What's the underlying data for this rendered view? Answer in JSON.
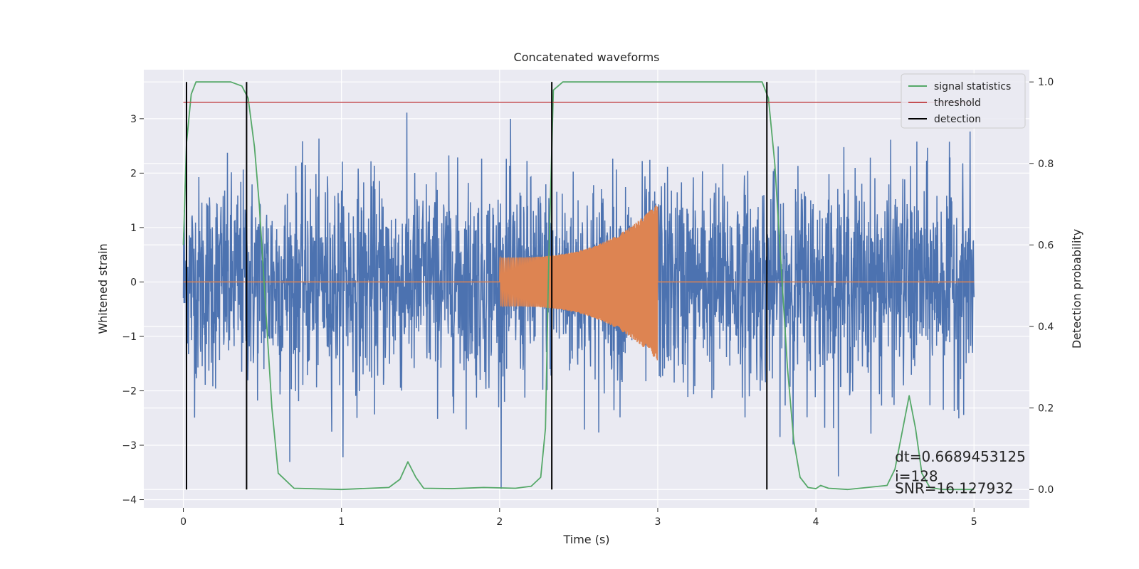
{
  "chart_data": {
    "type": "line",
    "title": "Concatenated waveforms",
    "xlabel": "Time (s)",
    "ylabel": "Whitened strain",
    "y2label": "Detection probability",
    "xlim": [
      -0.25,
      5.35
    ],
    "ylim": [
      -4.15,
      3.9
    ],
    "y2lim": [
      -0.045,
      1.03
    ],
    "xticks": [
      0,
      1,
      2,
      3,
      4,
      5
    ],
    "yticks": [
      -4,
      -3,
      -2,
      -1,
      0,
      1,
      2,
      3
    ],
    "y2ticks": [
      0.0,
      0.2,
      0.4,
      0.6,
      0.8,
      1.0
    ],
    "xtick_labels": [
      "0",
      "1",
      "2",
      "3",
      "4",
      "5"
    ],
    "ytick_labels": [
      "−4",
      "−3",
      "−2",
      "−1",
      "0",
      "1",
      "2",
      "3"
    ],
    "y2tick_labels": [
      "0.0",
      "0.2",
      "0.4",
      "0.6",
      "0.8",
      "1.0"
    ],
    "grid": true,
    "background": "#eaeaf2",
    "legend_position": "top-right",
    "legend": [
      {
        "label": "signal statistics",
        "color": "#55a868"
      },
      {
        "label": "threshold",
        "color": "#c44e52"
      },
      {
        "label": "detection",
        "color": "#000000"
      }
    ],
    "series": [
      {
        "name": "",
        "role": "whitened noise strain",
        "color": "#4c72b0",
        "x_range": [
          0,
          5
        ],
        "typical_range": [
          -1.0,
          1.0
        ],
        "min": -3.8,
        "max": 3.4
      },
      {
        "name": "",
        "role": "injected chirp waveform",
        "color": "#dd8452",
        "x_range": [
          0,
          5
        ],
        "chirp_x_range": [
          2.0,
          3.0
        ],
        "chirp_amplitude_start": 0.45,
        "chirp_amplitude_end": 1.45
      },
      {
        "name": "signal statistics",
        "axis": "right",
        "color": "#55a868",
        "x": [
          0.0,
          0.02,
          0.05,
          0.08,
          0.15,
          0.3,
          0.37,
          0.41,
          0.45,
          0.48,
          0.52,
          0.56,
          0.6,
          0.7,
          1.0,
          1.3,
          1.37,
          1.42,
          1.47,
          1.52,
          1.7,
          1.9,
          2.1,
          2.2,
          2.26,
          2.29,
          2.31,
          2.34,
          2.4,
          2.6,
          3.0,
          3.5,
          3.66,
          3.7,
          3.74,
          3.78,
          3.82,
          3.86,
          3.9,
          3.95,
          4.0,
          4.03,
          4.08,
          4.2,
          4.45,
          4.5,
          4.55,
          4.59,
          4.63,
          4.67,
          4.72,
          4.8,
          5.0
        ],
        "y": [
          0.6,
          0.85,
          0.97,
          1.0,
          1.0,
          1.0,
          0.99,
          0.96,
          0.84,
          0.7,
          0.45,
          0.2,
          0.04,
          0.003,
          0.0,
          0.005,
          0.025,
          0.068,
          0.03,
          0.003,
          0.002,
          0.005,
          0.003,
          0.008,
          0.03,
          0.15,
          0.55,
          0.98,
          1.0,
          1.0,
          1.0,
          1.0,
          1.0,
          0.96,
          0.8,
          0.55,
          0.3,
          0.12,
          0.03,
          0.005,
          0.002,
          0.01,
          0.003,
          0.0,
          0.01,
          0.05,
          0.15,
          0.23,
          0.15,
          0.04,
          0.005,
          0.0,
          0.0
        ]
      },
      {
        "name": "threshold",
        "axis": "right",
        "color": "#c44e52",
        "x": [
          0,
          5
        ],
        "y": [
          0.95,
          0.95
        ]
      }
    ],
    "detections": [
      0.02,
      0.4,
      2.33,
      3.69
    ],
    "annotations": [
      "dt=0.6689453125",
      " i=128",
      "SNR=16.127932"
    ]
  }
}
